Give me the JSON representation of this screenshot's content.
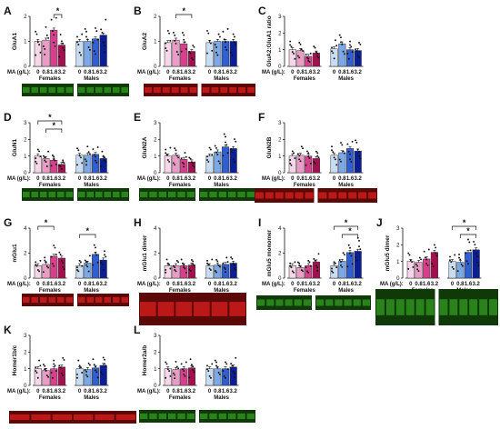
{
  "colors": {
    "female": [
      "#f6d6e8",
      "#ec9bc7",
      "#d8408d",
      "#a30f4f"
    ],
    "male": [
      "#c8dcf4",
      "#7ba9e6",
      "#2f5fd0",
      "#0a1f95"
    ],
    "blot_green": "#2f8f1d",
    "blot_green_dark": "#0f3a08",
    "blot_red": "#cc1b1b",
    "blot_red_dark": "#5a0808"
  },
  "chart_data": [
    {
      "type": "bar",
      "panel": "A",
      "ylabel": "GluA1",
      "ylim": [
        0,
        2
      ],
      "yticks": [
        "0",
        "1",
        "2"
      ],
      "x_prefix": "MA (g/L):",
      "categories": [
        "0",
        "0.8",
        "1.6",
        "3.2"
      ],
      "group_labels": [
        "Females",
        "Males"
      ],
      "series": [
        {
          "values": [
            1.0,
            1.05,
            1.45,
            0.85
          ]
        },
        {
          "values": [
            1.0,
            1.0,
            1.1,
            1.25
          ]
        }
      ],
      "significance": [
        {
          "label": "*",
          "group": 0,
          "from": 2,
          "to": 3
        }
      ],
      "blot": "green"
    },
    {
      "type": "bar",
      "panel": "B",
      "ylabel": "GluA2",
      "ylim": [
        0,
        2
      ],
      "yticks": [
        "0",
        "1",
        "2"
      ],
      "x_prefix": "MA (g/L):",
      "categories": [
        "0",
        "0.8",
        "1.6",
        "3.2"
      ],
      "group_labels": [
        "Females",
        "Males"
      ],
      "series": [
        {
          "values": [
            0.95,
            1.05,
            0.9,
            0.6
          ]
        },
        {
          "values": [
            0.95,
            1.0,
            1.0,
            1.0
          ]
        }
      ],
      "significance": [
        {
          "label": "*",
          "group": 0,
          "from": 1,
          "to": 3
        }
      ],
      "blot": "red"
    },
    {
      "type": "bar",
      "panel": "C",
      "ylabel": "GluA2:GluA1 ratio",
      "ylim": [
        0,
        3
      ],
      "yticks": [
        "0",
        "1",
        "2",
        "3"
      ],
      "x_prefix": "MA (g/L):",
      "categories": [
        "0",
        "0.8",
        "1.6",
        "3.2"
      ],
      "group_labels": [
        "Females",
        "Males"
      ],
      "series": [
        {
          "values": [
            1.0,
            0.95,
            0.6,
            0.8
          ]
        },
        {
          "values": [
            1.05,
            1.35,
            1.0,
            0.95
          ]
        }
      ],
      "significance": [],
      "blot": ""
    },
    {
      "type": "bar",
      "panel": "D",
      "ylabel": "GluN1",
      "ylim": [
        0,
        3
      ],
      "yticks": [
        "0",
        "1",
        "2",
        "3"
      ],
      "x_prefix": "MA (g/L):",
      "categories": [
        "0",
        "0.8",
        "1.6",
        "3.2"
      ],
      "group_labels": [
        "Females",
        "Males"
      ],
      "series": [
        {
          "values": [
            1.0,
            0.85,
            0.75,
            0.5
          ]
        },
        {
          "values": [
            1.05,
            1.05,
            1.1,
            0.85
          ]
        }
      ],
      "significance": [
        {
          "label": "*",
          "group": 0,
          "from": 0,
          "to": 3
        },
        {
          "label": "*",
          "group": 0,
          "from": 1,
          "to": 3
        }
      ],
      "blot": "green"
    },
    {
      "type": "bar",
      "panel": "E",
      "ylabel": "GluN2A",
      "ylim": [
        0,
        3
      ],
      "yticks": [
        "0",
        "1",
        "2",
        "3"
      ],
      "x_prefix": "MA (g/L):",
      "categories": [
        "0",
        "0.8",
        "1.6",
        "3.2"
      ],
      "group_labels": [
        "Females",
        "Males"
      ],
      "series": [
        {
          "values": [
            1.0,
            1.05,
            0.8,
            0.65
          ]
        },
        {
          "values": [
            1.0,
            1.25,
            1.55,
            1.45
          ]
        }
      ],
      "significance": [],
      "blot": "green"
    },
    {
      "type": "bar",
      "panel": "F",
      "ylabel": "GluN2B",
      "ylim": [
        0,
        3
      ],
      "yticks": [
        "0",
        "1",
        "2",
        "3"
      ],
      "x_prefix": "MA (g/L):",
      "categories": [
        "0",
        "0.8",
        "1.6",
        "3.2"
      ],
      "group_labels": [
        "Females",
        "Males"
      ],
      "series": [
        {
          "values": [
            1.0,
            1.05,
            1.0,
            0.85
          ]
        },
        {
          "values": [
            1.05,
            1.2,
            1.45,
            1.3
          ]
        }
      ],
      "significance": [],
      "blot": "red"
    },
    {
      "type": "bar",
      "panel": "G",
      "ylabel": "mGlu1",
      "ylim": [
        0,
        4
      ],
      "yticks": [
        "0",
        "2",
        "4"
      ],
      "x_prefix": "MA (g/L):",
      "categories": [
        "0",
        "0.8",
        "1.6",
        "3.2"
      ],
      "group_labels": [
        "Females",
        "Males"
      ],
      "series": [
        {
          "values": [
            1.0,
            1.1,
            1.75,
            1.6
          ]
        },
        {
          "values": [
            1.0,
            1.2,
            1.9,
            1.45
          ]
        }
      ],
      "significance": [
        {
          "label": "*",
          "group": 0,
          "from": 0,
          "to": 2
        },
        {
          "label": "*",
          "group": 1,
          "from": 0,
          "to": 2
        }
      ],
      "blot": "red"
    },
    {
      "type": "bar",
      "panel": "H",
      "ylabel": "mGlu1 dimer",
      "ylim": [
        0,
        4
      ],
      "yticks": [
        "0",
        "2",
        "4"
      ],
      "x_prefix": "MA (g/L):",
      "categories": [
        "0",
        "0.8",
        "1.6",
        "3.2"
      ],
      "group_labels": [
        "Females",
        "Males"
      ],
      "series": [
        {
          "values": [
            1.0,
            1.0,
            1.0,
            1.05
          ]
        },
        {
          "values": [
            1.0,
            1.05,
            1.1,
            1.2
          ]
        }
      ],
      "significance": [],
      "blot": "red_large"
    },
    {
      "type": "bar",
      "panel": "I",
      "ylabel": "mGlu5 monomer",
      "ylim": [
        0,
        4
      ],
      "yticks": [
        "0",
        "2",
        "4"
      ],
      "x_prefix": "MA (g/L):",
      "categories": [
        "0",
        "0.8",
        "1.6",
        "3.2"
      ],
      "group_labels": [
        "Females",
        "Males"
      ],
      "series": [
        {
          "values": [
            1.0,
            0.85,
            1.0,
            1.3
          ]
        },
        {
          "values": [
            1.0,
            1.35,
            2.05,
            2.15
          ]
        }
      ],
      "significance": [
        {
          "label": "*",
          "group": 1,
          "from": 0,
          "to": 3
        },
        {
          "label": "*",
          "group": 1,
          "from": 1,
          "to": 3
        }
      ],
      "blot": "green"
    },
    {
      "type": "bar",
      "panel": "J",
      "ylabel": "mGlu5 dimer",
      "ylim": [
        0,
        3
      ],
      "yticks": [
        "0",
        "1",
        "2",
        "3"
      ],
      "x_prefix": "MA (g/L):",
      "categories": [
        "0",
        "0.8",
        "1.6",
        "3.2"
      ],
      "group_labels": [
        "Females",
        "Males"
      ],
      "series": [
        {
          "values": [
            1.0,
            0.95,
            1.15,
            1.55
          ]
        },
        {
          "values": [
            1.0,
            0.95,
            1.55,
            1.7
          ]
        }
      ],
      "significance": [
        {
          "label": "*",
          "group": 1,
          "from": 0,
          "to": 3
        },
        {
          "label": "*",
          "group": 1,
          "from": 1,
          "to": 3
        }
      ],
      "blot": "green_large"
    },
    {
      "type": "bar",
      "panel": "K",
      "ylabel": "Homer1b/c",
      "ylim": [
        0,
        3
      ],
      "yticks": [
        "0",
        "1",
        "2",
        "3"
      ],
      "x_prefix": "MA (g/L):",
      "categories": [
        "0",
        "0.8",
        "1.6",
        "3.2"
      ],
      "group_labels": [
        "Females",
        "Males"
      ],
      "series": [
        {
          "values": [
            1.0,
            0.9,
            1.0,
            1.1
          ]
        },
        {
          "values": [
            1.0,
            0.95,
            1.05,
            1.2
          ]
        }
      ],
      "significance": [],
      "blot": "red"
    },
    {
      "type": "bar",
      "panel": "L",
      "ylabel": "Homer2a/b",
      "ylim": [
        0,
        3
      ],
      "yticks": [
        "0",
        "1",
        "2",
        "3"
      ],
      "x_prefix": "MA (g/L):",
      "categories": [
        "0",
        "0.8",
        "1.6",
        "3.2"
      ],
      "group_labels": [
        "Females",
        "Males"
      ],
      "series": [
        {
          "values": [
            1.0,
            0.95,
            1.0,
            1.05
          ]
        },
        {
          "values": [
            1.0,
            1.0,
            1.0,
            1.1
          ]
        }
      ],
      "significance": [],
      "blot": "green"
    }
  ]
}
